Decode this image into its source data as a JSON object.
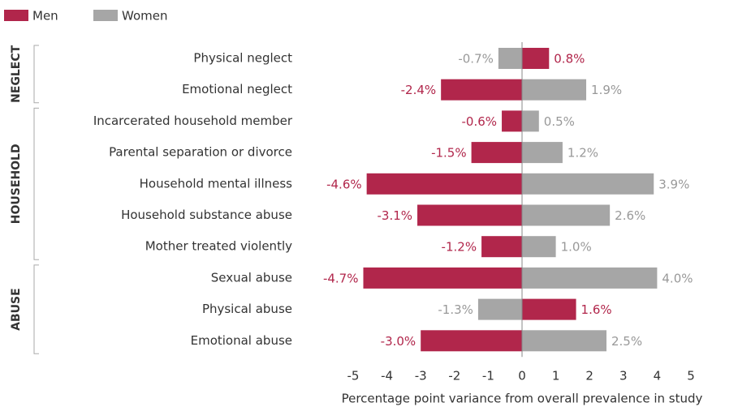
{
  "chart_data": {
    "type": "bar",
    "orientation": "horizontal",
    "categories": [
      "Physical neglect",
      "Emotional neglect",
      "Incarcerated household member",
      "Parental separation or divorce",
      "Household mental illness",
      "Household substance abuse",
      "Mother treated violently",
      "Sexual abuse",
      "Physical abuse",
      "Emotional abuse"
    ],
    "groups": [
      {
        "label": "NEGLECT",
        "size": 2
      },
      {
        "label": "HOUSEHOLD",
        "size": 5
      },
      {
        "label": "ABUSE",
        "size": 3
      }
    ],
    "series": [
      {
        "name": "Men",
        "color": "#b1264b",
        "values": [
          0.8,
          -2.4,
          -0.6,
          -1.5,
          -4.6,
          -3.1,
          -1.2,
          -4.7,
          1.6,
          -3.0
        ],
        "value_labels": [
          "0.8%",
          "-2.4%",
          "-0.6%",
          "-1.5%",
          "-4.6%",
          "-3.1%",
          "-1.2%",
          "-4.7%",
          "1.6%",
          "-3.0%"
        ]
      },
      {
        "name": "Women",
        "color": "#a6a6a6",
        "values": [
          -0.7,
          1.9,
          0.5,
          1.2,
          3.9,
          2.6,
          1.0,
          4.0,
          -1.3,
          2.5
        ],
        "value_labels": [
          "-0.7%",
          "1.9%",
          "0.5%",
          "1.2%",
          "3.9%",
          "2.6%",
          "1.0%",
          "4.0%",
          "-1.3%",
          "2.5%"
        ]
      }
    ],
    "xlabel": "Percentage point variance from overall prevalence in study",
    "xlim": [
      -5,
      5
    ],
    "xticks": [
      -5,
      -4,
      -3,
      -2,
      -1,
      0,
      1,
      2,
      3,
      4,
      5
    ],
    "legend": "top-left"
  }
}
